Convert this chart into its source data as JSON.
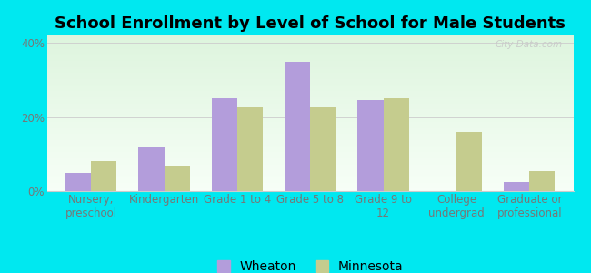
{
  "title": "School Enrollment by Level of School for Male Students",
  "categories": [
    "Nursery,\npreschool",
    "Kindergarten",
    "Grade 1 to 4",
    "Grade 5 to 8",
    "Grade 9 to\n12",
    "College\nundergrad",
    "Graduate or\nprofessional"
  ],
  "wheaton": [
    5.0,
    12.0,
    25.0,
    35.0,
    24.5,
    0.0,
    2.5
  ],
  "minnesota": [
    8.0,
    7.0,
    22.5,
    22.5,
    25.0,
    16.0,
    5.5
  ],
  "wheaton_color": "#b39ddb",
  "minnesota_color": "#c5cc8e",
  "bar_width": 0.35,
  "ylim": [
    0,
    42
  ],
  "yticks": [
    0,
    20,
    40
  ],
  "ytick_labels": [
    "0%",
    "20%",
    "40%"
  ],
  "background_color": "#00e8f0",
  "legend_labels": [
    "Wheaton",
    "Minnesota"
  ],
  "title_fontsize": 13,
  "tick_fontsize": 8.5,
  "legend_fontsize": 10,
  "watermark": "City-Data.com",
  "watermark_color": "#c8c8c8"
}
